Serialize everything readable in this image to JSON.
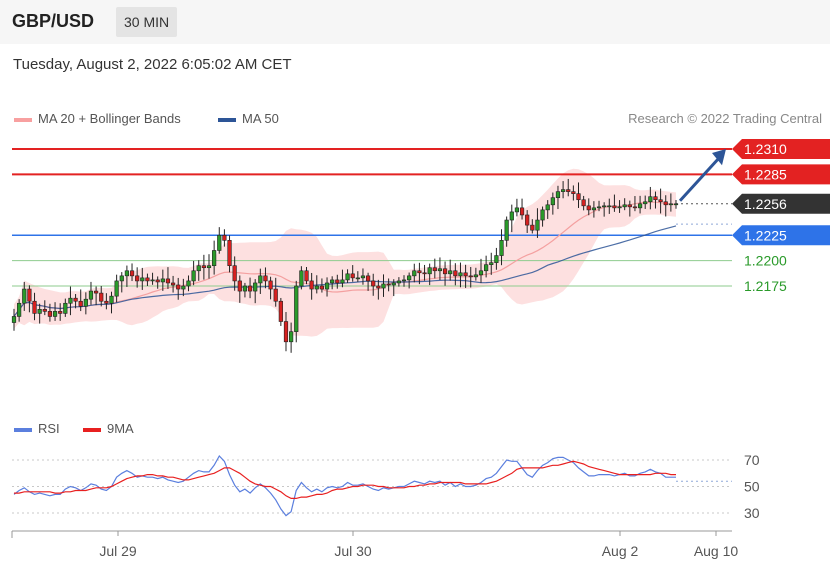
{
  "header": {
    "symbol": "GBP/USD",
    "timeframe": "30 MIN"
  },
  "datetime": "Tuesday, August 2, 2022 6:05:02 AM CET",
  "legend": {
    "ma20": {
      "label": "MA 20 + Bollinger Bands",
      "color": "#f47a7a"
    },
    "ma50": {
      "label": "MA 50",
      "color": "#2d5597"
    }
  },
  "credit": "Research © 2022 Trading Central",
  "rsi_legend": {
    "rsi": {
      "label": "RSI",
      "color": "#5b7fde"
    },
    "ma9": {
      "label": "9MA",
      "color": "#e82020"
    }
  },
  "chart_data": {
    "type": "candlestick",
    "price_ylim": [
      2.2095,
      1.2335
    ],
    "levels": [
      {
        "value": 1.231,
        "label": "1.2310",
        "kind": "resistance",
        "color": "#e32222"
      },
      {
        "value": 1.2285,
        "label": "1.2285",
        "kind": "resistance",
        "color": "#e32222"
      },
      {
        "value": 1.2256,
        "label": "1.2256",
        "kind": "last",
        "color": "#333333"
      },
      {
        "value": 1.2225,
        "label": "1.2225",
        "kind": "support",
        "color": "#2e73e8"
      },
      {
        "value": 1.22,
        "label": "1.2200",
        "kind": "pivot",
        "color": "#2a9a2a"
      },
      {
        "value": 1.2175,
        "label": "1.2175",
        "kind": "pivot",
        "color": "#2a9a2a"
      }
    ],
    "x_ticks": [
      "Jul 29",
      "Jul 30",
      "Aug 2",
      "Aug 10"
    ],
    "closes": [
      1.2145,
      1.2158,
      1.2172,
      1.216,
      1.2148,
      1.2152,
      1.215,
      1.2145,
      1.215,
      1.2148,
      1.2158,
      1.2163,
      1.216,
      1.2155,
      1.2162,
      1.217,
      1.2168,
      1.216,
      1.2158,
      1.2165,
      1.218,
      1.2185,
      1.219,
      1.2185,
      1.218,
      1.2183,
      1.218,
      1.2181,
      1.2179,
      1.2182,
      1.2178,
      1.2176,
      1.2172,
      1.2175,
      1.218,
      1.219,
      1.2195,
      1.2193,
      1.2195,
      1.221,
      1.2225,
      1.222,
      1.2195,
      1.218,
      1.217,
      1.2175,
      1.217,
      1.2178,
      1.2185,
      1.218,
      1.2172,
      1.216,
      1.214,
      1.212,
      1.213,
      1.2175,
      1.219,
      1.218,
      1.2172,
      1.2175,
      1.2172,
      1.2178,
      1.2181,
      1.2178,
      1.2181,
      1.2187,
      1.2183,
      1.2183,
      1.2185,
      1.218,
      1.2175,
      1.2173,
      1.2177,
      1.2176,
      1.2178,
      1.218,
      1.2181,
      1.2185,
      1.219,
      1.2188,
      1.2187,
      1.2193,
      1.219,
      1.2192,
      1.2187,
      1.219,
      1.2185,
      1.2188,
      1.2185,
      1.2184,
      1.2186,
      1.219,
      1.2196,
      1.2198,
      1.2205,
      1.222,
      1.224,
      1.2248,
      1.2252,
      1.2245,
      1.2235,
      1.223,
      1.224,
      1.225,
      1.2255,
      1.2262,
      1.2268,
      1.227,
      1.2268,
      1.2266,
      1.226,
      1.2254,
      1.225,
      1.2252,
      1.2253,
      1.2254,
      1.2254,
      1.2252,
      1.2253,
      1.2255,
      1.2253,
      1.2252,
      1.2256,
      1.2258,
      1.2263,
      1.226,
      1.2258,
      1.2255,
      1.2256,
      1.2256
    ],
    "rsi_ylim": [
      25,
      82
    ],
    "rsi_ticks": [
      70,
      50,
      30
    ],
    "rsi": [
      44,
      47,
      49,
      46,
      44,
      45,
      44,
      43,
      44,
      44,
      48,
      50,
      49,
      47,
      49,
      52,
      51,
      48,
      47,
      50,
      57,
      60,
      62,
      60,
      57,
      58,
      57,
      57,
      56,
      57,
      55,
      54,
      53,
      54,
      57,
      60,
      62,
      61,
      61,
      66,
      73,
      69,
      59,
      51,
      46,
      48,
      45,
      49,
      52,
      49,
      45,
      40,
      33,
      28,
      31,
      47,
      53,
      49,
      46,
      48,
      46,
      49,
      50,
      49,
      50,
      53,
      51,
      51,
      52,
      50,
      48,
      47,
      49,
      48,
      49,
      50,
      50,
      52,
      54,
      53,
      52,
      54,
      53,
      54,
      51,
      53,
      50,
      52,
      50,
      50,
      51,
      53,
      56,
      57,
      60,
      65,
      70,
      69,
      69,
      64,
      59,
      57,
      62,
      66,
      68,
      71,
      72,
      72,
      70,
      68,
      64,
      61,
      58,
      58,
      59,
      59,
      59,
      58,
      59,
      60,
      58,
      58,
      60,
      61,
      63,
      61,
      60,
      57,
      57,
      57
    ],
    "rsi_ma9": [
      45,
      45,
      46,
      46,
      46,
      46,
      46,
      46,
      45,
      45,
      46,
      46,
      47,
      47,
      47,
      48,
      49,
      49,
      49,
      50,
      52,
      54,
      56,
      57,
      58,
      58,
      59,
      59,
      58,
      58,
      57,
      57,
      56,
      55,
      55,
      56,
      57,
      58,
      59,
      60,
      62,
      64,
      64,
      62,
      60,
      57,
      54,
      52,
      51,
      50,
      50,
      48,
      46,
      43,
      41,
      41,
      42,
      42,
      43,
      44,
      44,
      45,
      47,
      48,
      48,
      49,
      50,
      50,
      51,
      51,
      51,
      50,
      50,
      49,
      49,
      49,
      49,
      50,
      50,
      51,
      51,
      52,
      52,
      53,
      53,
      53,
      53,
      53,
      52,
      52,
      52,
      52,
      52,
      53,
      54,
      56,
      58,
      60,
      63,
      64,
      64,
      64,
      64,
      64,
      65,
      66,
      66,
      67,
      68,
      69,
      68,
      67,
      65,
      64,
      63,
      62,
      61,
      60,
      59,
      59,
      59,
      59,
      59,
      59,
      59,
      60,
      60,
      60,
      59,
      59
    ]
  }
}
